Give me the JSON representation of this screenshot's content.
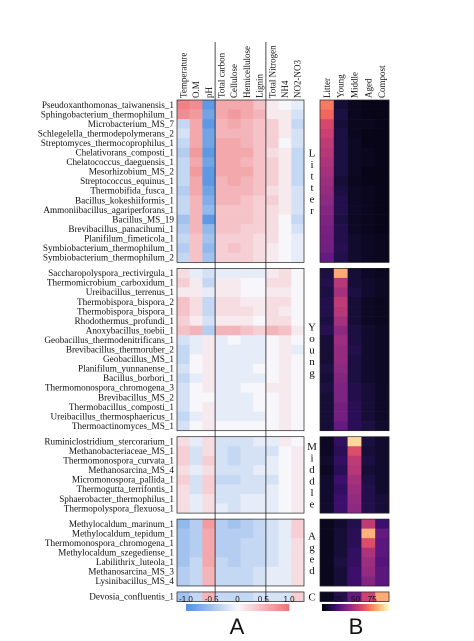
{
  "panels": {
    "a": "A",
    "b": "B"
  },
  "colors": {
    "diverging_low": "#4f8fe0",
    "diverging_mid": "#f7f7fb",
    "diverging_high": "#f07378",
    "magma": [
      "#000004",
      "#180f3d",
      "#440f76",
      "#721f81",
      "#9e2f7f",
      "#cd4071",
      "#f1605d",
      "#fd9668",
      "#feca8d",
      "#fcfdbf"
    ]
  },
  "chart_data": [
    {
      "type": "heatmap",
      "name": "A",
      "columns": [
        "Temperature",
        "O.M",
        "pH",
        "Total carbon",
        "Cellulose",
        "Hemicellulose",
        "Lignin",
        "Total Nitrogen",
        "NH4",
        "NO2-NO3"
      ],
      "column_groups": [
        [
          0,
          2
        ],
        [
          3,
          6
        ],
        [
          7,
          9
        ]
      ],
      "rows": [
        "Pseudoxanthomonas_taiwanensis_1",
        "Sphingobacterium_thermophilum_1",
        "Microbacterium_MS_7",
        "Schlegelella_thermodepolymerans_2",
        "Streptomyces_thermocoprophilus_1",
        "Chelativorans_composti_1",
        "Chelatococcus_daeguensis_1",
        "Mesorhizobium_MS_2",
        "Streptococcus_equinus_1",
        "Thermobifida_fusca_1",
        "Bacillus_kokeshiiformis_1",
        "Ammoniibacillus_agariperforans_1",
        "Bacillus_MS_19",
        "Brevibacillus_panacihumi_1",
        "Planifilum_fimeticola_1",
        "Symbiobacterium_thermophilum_1",
        "Symbiobacterium_thermophilum_2",
        "Saccharopolyspora_rectivirgula_1",
        "Thermomicrobium_carboxidum_1",
        "Ureibacillus_terrenus_1",
        "Thermobispora_bispora_2",
        "Thermobispora_bispora_1",
        "Rhodothermus_profundi_1",
        "Anoxybacillus_toebii_1",
        "Geobacillus_thermodenitrificans_1",
        "Brevibacillus_thermoruber_2",
        "Geobacillus_MS_1",
        "Planifilum_yunnanense_1",
        "Bacillus_borbori_1",
        "Thermomonospora_chromogena_3",
        "Brevibacillus_MS_2",
        "Thermobacillus_composti_1",
        "Ureibacillus_thermosphaericus_1",
        "Thermoactinomyces_MS_1",
        "Ruminiclostridium_stercorarium_1",
        "Methanobacteriaceae_MS_1",
        "Thermomonospora_curvata_1",
        "Methanosarcina_MS_4",
        "Micromonospora_pallida_1",
        "Thermogutta_terrifontis_1",
        "Sphaerobacter_thermophilus_1",
        "Thermopolyspora_flexuosa_1",
        "Methylocaldum_marinum_1",
        "Methylocaldum_tepidum_1",
        "Thermomonospora_chromogena_1",
        "Methylocaldum_szegediense_1",
        "Labilithrix_luteola_1",
        "Methanosarcina_MS_3",
        "Lysinibacillus_MS_4",
        "Devosia_confluentis_1"
      ],
      "row_groups": [
        {
          "label": "Litter",
          "count": 17
        },
        {
          "label": "Young",
          "count": 17
        },
        {
          "label": "Middle",
          "count": 8
        },
        {
          "label": "Aged",
          "count": 7
        },
        {
          "label": "C",
          "count": 1
        }
      ],
      "values": [
        [
          0.9,
          0.8,
          -0.9,
          0.6,
          0.6,
          0.6,
          0.4,
          0.1,
          0.0,
          -0.1
        ],
        [
          0.8,
          0.7,
          -0.8,
          0.6,
          0.7,
          0.6,
          0.5,
          0.1,
          0.1,
          -0.2
        ],
        [
          -0.3,
          0.6,
          -0.9,
          0.5,
          0.6,
          0.5,
          0.4,
          0.3,
          0.1,
          -0.3
        ],
        [
          -0.2,
          0.6,
          -0.8,
          0.5,
          0.5,
          0.5,
          0.4,
          0.3,
          0.1,
          -0.2
        ],
        [
          -0.3,
          0.6,
          -0.8,
          0.6,
          0.6,
          0.5,
          0.4,
          0.3,
          0.0,
          -0.2
        ],
        [
          -0.4,
          0.7,
          -0.9,
          0.6,
          0.6,
          0.6,
          0.4,
          0.2,
          0.1,
          -0.3
        ],
        [
          -0.3,
          0.6,
          -0.8,
          0.6,
          0.6,
          0.5,
          0.4,
          0.3,
          0.1,
          -0.3
        ],
        [
          -0.3,
          0.7,
          -0.9,
          0.6,
          0.6,
          0.6,
          0.4,
          0.3,
          0.1,
          -0.3
        ],
        [
          -0.3,
          0.6,
          -0.9,
          0.5,
          0.6,
          0.5,
          0.4,
          0.3,
          0.1,
          -0.3
        ],
        [
          -0.4,
          0.6,
          -0.8,
          0.5,
          0.5,
          0.5,
          0.4,
          0.2,
          0.1,
          -0.2
        ],
        [
          -0.3,
          0.5,
          -0.7,
          0.5,
          0.5,
          0.4,
          0.3,
          0.3,
          0.1,
          -0.2
        ],
        [
          -0.3,
          0.5,
          -0.6,
          0.4,
          0.4,
          0.4,
          0.3,
          0.2,
          0.1,
          -0.2
        ],
        [
          -0.5,
          0.5,
          -0.9,
          0.4,
          0.4,
          0.4,
          0.3,
          0.2,
          0.0,
          -0.3
        ],
        [
          -0.4,
          0.5,
          -0.6,
          0.4,
          0.4,
          0.3,
          0.3,
          0.2,
          0.0,
          -0.2
        ],
        [
          -0.3,
          0.4,
          -0.5,
          0.3,
          0.3,
          0.3,
          0.2,
          0.2,
          0.0,
          -0.1
        ],
        [
          -0.4,
          0.4,
          -0.6,
          0.3,
          0.4,
          0.3,
          0.2,
          0.1,
          0.0,
          -0.1
        ],
        [
          -0.3,
          0.4,
          -0.5,
          0.3,
          0.3,
          0.3,
          0.2,
          0.1,
          0.0,
          -0.1
        ],
        [
          0.2,
          -0.1,
          -0.2,
          -0.1,
          -0.1,
          -0.1,
          -0.1,
          0.1,
          0.2,
          0.0
        ],
        [
          0.3,
          0.1,
          -0.3,
          0.1,
          0.1,
          0.0,
          0.0,
          0.2,
          0.2,
          0.0
        ],
        [
          0.1,
          0.1,
          -0.1,
          0.1,
          0.1,
          0.0,
          0.0,
          0.1,
          0.1,
          0.0
        ],
        [
          0.4,
          0.2,
          -0.3,
          0.2,
          0.2,
          0.1,
          0.1,
          0.2,
          0.2,
          0.0
        ],
        [
          0.4,
          0.2,
          -0.3,
          0.2,
          0.2,
          0.2,
          0.1,
          0.2,
          0.1,
          0.0
        ],
        [
          0.3,
          0.1,
          -0.2,
          0.1,
          0.1,
          0.1,
          0.0,
          0.2,
          0.2,
          0.0
        ],
        [
          0.4,
          0.5,
          -0.4,
          0.5,
          0.5,
          0.4,
          0.3,
          0.5,
          0.4,
          0.1
        ],
        [
          -0.2,
          -0.1,
          0.1,
          -0.1,
          0.0,
          -0.1,
          -0.1,
          0.0,
          0.1,
          0.0
        ],
        [
          -0.3,
          -0.1,
          0.1,
          -0.1,
          -0.1,
          -0.1,
          -0.1,
          0.0,
          0.1,
          -0.1
        ],
        [
          -0.3,
          0.0,
          0.1,
          -0.1,
          -0.1,
          -0.1,
          -0.1,
          0.0,
          0.1,
          0.0
        ],
        [
          -0.2,
          0.0,
          0.1,
          -0.1,
          -0.1,
          -0.1,
          0.0,
          0.0,
          0.1,
          0.0
        ],
        [
          -0.3,
          -0.1,
          0.1,
          -0.1,
          -0.1,
          -0.1,
          -0.1,
          0.0,
          0.1,
          0.0
        ],
        [
          -0.2,
          0.0,
          0.1,
          -0.1,
          -0.1,
          0.0,
          0.0,
          0.1,
          0.1,
          0.0
        ],
        [
          -0.2,
          0.0,
          0.0,
          -0.1,
          -0.1,
          -0.1,
          0.0,
          0.0,
          0.1,
          0.0
        ],
        [
          -0.2,
          0.0,
          0.1,
          -0.1,
          -0.1,
          -0.1,
          0.0,
          0.0,
          0.1,
          0.0
        ],
        [
          -0.3,
          -0.1,
          0.1,
          -0.1,
          -0.1,
          -0.1,
          -0.1,
          0.0,
          0.1,
          0.0
        ],
        [
          -0.2,
          0.0,
          0.1,
          0.0,
          0.0,
          0.0,
          0.0,
          0.0,
          0.1,
          0.0
        ],
        [
          0.2,
          -0.1,
          0.2,
          -0.2,
          -0.2,
          -0.2,
          -0.1,
          -0.1,
          0.1,
          0.0
        ],
        [
          0.3,
          -0.2,
          0.2,
          -0.2,
          -0.3,
          -0.2,
          -0.2,
          -0.2,
          0.0,
          0.1
        ],
        [
          0.3,
          -0.2,
          0.3,
          -0.2,
          -0.3,
          -0.2,
          -0.2,
          -0.1,
          0.0,
          0.1
        ],
        [
          0.2,
          -0.1,
          0.2,
          -0.2,
          -0.2,
          -0.2,
          -0.1,
          -0.1,
          0.0,
          0.1
        ],
        [
          0.3,
          -0.2,
          0.3,
          -0.3,
          -0.3,
          -0.2,
          -0.2,
          -0.2,
          0.0,
          0.1
        ],
        [
          0.2,
          -0.2,
          0.3,
          -0.2,
          -0.2,
          -0.2,
          -0.2,
          -0.1,
          0.0,
          0.1
        ],
        [
          0.2,
          -0.1,
          0.2,
          -0.2,
          -0.2,
          -0.1,
          -0.1,
          -0.1,
          0.0,
          0.1
        ],
        [
          0.2,
          -0.1,
          0.2,
          -0.1,
          -0.2,
          -0.1,
          -0.1,
          -0.1,
          0.0,
          0.1
        ],
        [
          -0.6,
          -0.4,
          0.7,
          -0.4,
          -0.5,
          -0.4,
          -0.3,
          -0.2,
          -0.1,
          0.3
        ],
        [
          -0.5,
          -0.4,
          0.6,
          -0.4,
          -0.4,
          -0.4,
          -0.3,
          -0.2,
          -0.1,
          0.3
        ],
        [
          -0.5,
          -0.4,
          0.6,
          -0.4,
          -0.4,
          -0.3,
          -0.3,
          -0.2,
          -0.1,
          0.2
        ],
        [
          -0.5,
          -0.4,
          0.6,
          -0.4,
          -0.4,
          -0.3,
          -0.3,
          -0.2,
          -0.1,
          0.2
        ],
        [
          -0.5,
          -0.3,
          0.6,
          -0.3,
          -0.4,
          -0.3,
          -0.3,
          -0.2,
          -0.1,
          0.2
        ],
        [
          -0.4,
          -0.3,
          0.5,
          -0.3,
          -0.3,
          -0.3,
          -0.2,
          -0.1,
          -0.1,
          0.2
        ],
        [
          -0.4,
          -0.3,
          0.5,
          -0.3,
          -0.3,
          -0.3,
          -0.2,
          -0.1,
          -0.1,
          0.2
        ],
        [
          -0.5,
          -0.3,
          0.5,
          -0.3,
          -0.3,
          -0.3,
          -0.2,
          -0.2,
          -0.2,
          0.3
        ]
      ],
      "colorbar": {
        "ticks": [
          "-1.0",
          "-0.5",
          "0",
          "0.5",
          "1.0"
        ],
        "range": [
          -1.0,
          1.0
        ]
      }
    },
    {
      "type": "heatmap",
      "name": "B",
      "columns": [
        "Litter",
        "Young",
        "Middle",
        "Aged",
        "Compost"
      ],
      "values": [
        [
          72,
          10,
          5,
          4,
          4
        ],
        [
          68,
          12,
          5,
          4,
          4
        ],
        [
          58,
          10,
          5,
          5,
          4
        ],
        [
          55,
          12,
          5,
          4,
          4
        ],
        [
          52,
          12,
          6,
          4,
          4
        ],
        [
          50,
          12,
          6,
          5,
          4
        ],
        [
          48,
          12,
          6,
          5,
          4
        ],
        [
          46,
          12,
          6,
          4,
          4
        ],
        [
          44,
          10,
          5,
          4,
          4
        ],
        [
          42,
          12,
          6,
          5,
          4
        ],
        [
          40,
          14,
          6,
          5,
          4
        ],
        [
          38,
          14,
          7,
          5,
          4
        ],
        [
          36,
          12,
          6,
          5,
          4
        ],
        [
          35,
          14,
          7,
          5,
          4
        ],
        [
          34,
          14,
          8,
          6,
          5
        ],
        [
          33,
          15,
          8,
          6,
          5
        ],
        [
          30,
          14,
          8,
          6,
          5
        ],
        [
          12,
          82,
          10,
          6,
          5
        ],
        [
          14,
          50,
          10,
          8,
          6
        ],
        [
          12,
          46,
          12,
          8,
          6
        ],
        [
          14,
          52,
          10,
          6,
          5
        ],
        [
          14,
          50,
          10,
          6,
          5
        ],
        [
          12,
          46,
          10,
          6,
          5
        ],
        [
          15,
          40,
          12,
          8,
          6
        ],
        [
          10,
          44,
          12,
          8,
          6
        ],
        [
          10,
          42,
          14,
          8,
          6
        ],
        [
          10,
          42,
          12,
          8,
          6
        ],
        [
          12,
          40,
          12,
          8,
          6
        ],
        [
          10,
          38,
          12,
          8,
          6
        ],
        [
          12,
          36,
          14,
          10,
          7
        ],
        [
          10,
          36,
          14,
          10,
          7
        ],
        [
          10,
          34,
          16,
          10,
          7
        ],
        [
          10,
          34,
          16,
          10,
          7
        ],
        [
          10,
          30,
          16,
          12,
          8
        ],
        [
          6,
          18,
          92,
          12,
          8
        ],
        [
          6,
          16,
          60,
          10,
          8
        ],
        [
          8,
          18,
          52,
          12,
          8
        ],
        [
          6,
          16,
          50,
          10,
          8
        ],
        [
          8,
          20,
          46,
          12,
          8
        ],
        [
          8,
          18,
          44,
          14,
          8
        ],
        [
          8,
          20,
          42,
          14,
          10
        ],
        [
          8,
          20,
          40,
          14,
          10
        ],
        [
          5,
          8,
          14,
          52,
          20
        ],
        [
          5,
          10,
          16,
          84,
          30
        ],
        [
          5,
          10,
          16,
          60,
          28
        ],
        [
          5,
          10,
          18,
          48,
          28
        ],
        [
          5,
          12,
          18,
          44,
          26
        ],
        [
          5,
          10,
          20,
          42,
          28
        ],
        [
          5,
          10,
          20,
          38,
          28
        ],
        [
          5,
          14,
          30,
          56,
          82
        ]
      ],
      "colorbar": {
        "ticks": [
          "25",
          "50",
          "75"
        ],
        "range": [
          0,
          100
        ]
      }
    }
  ]
}
